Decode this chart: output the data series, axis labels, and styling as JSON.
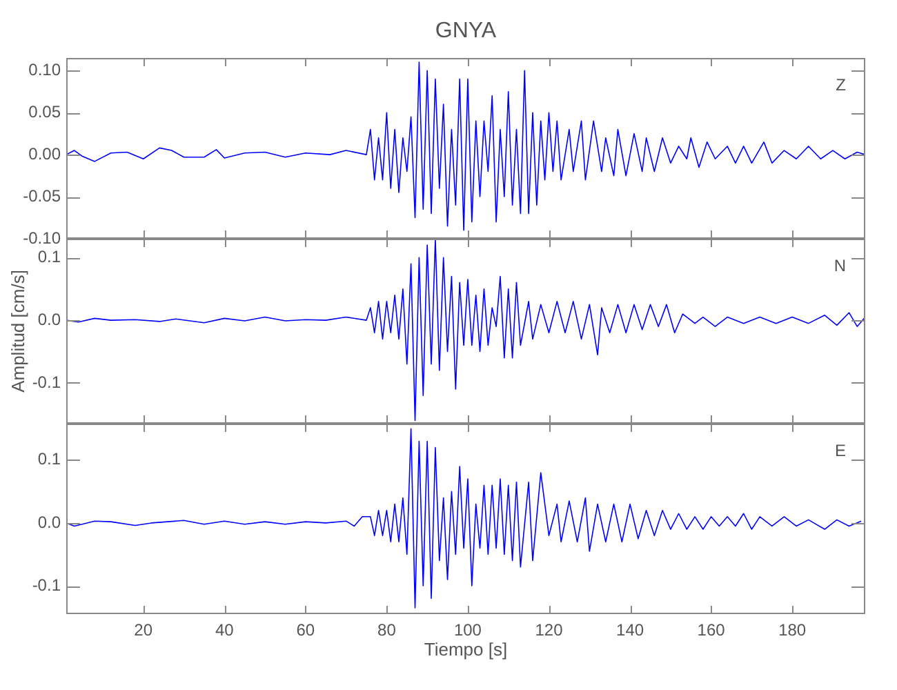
{
  "chart_data": [
    {
      "type": "line",
      "title": "GNYA",
      "annotations": [
        "Z"
      ],
      "tick_labels": "y",
      "xlim": [
        1,
        198
      ],
      "xticks": [
        20,
        40,
        60,
        80,
        100,
        120,
        140,
        160,
        180
      ],
      "ylim": [
        -0.1,
        0.115
      ],
      "yticks": [
        {
          "value": -0.1,
          "label": "-0.10"
        },
        {
          "value": -0.05,
          "label": "-0.05"
        },
        {
          "value": 0,
          "label": "0.00"
        },
        {
          "value": 0.05,
          "label": "0.05"
        },
        {
          "value": 0.1,
          "label": "0.10"
        }
      ],
      "series": [
        {
          "color": "#0000ff",
          "x": [
            1,
            3,
            5,
            8,
            12,
            16,
            20,
            24,
            27,
            30,
            35,
            38,
            40,
            45,
            50,
            55,
            60,
            66,
            70,
            75,
            76,
            77,
            78,
            79,
            80,
            81,
            82,
            83,
            84,
            85,
            86,
            87,
            88,
            89,
            90,
            91,
            92,
            93,
            94,
            95,
            96,
            97,
            98,
            99,
            100,
            101,
            102,
            103,
            104,
            105,
            106,
            107,
            108,
            109,
            110,
            111,
            112,
            113,
            114,
            115,
            116,
            117,
            118,
            119,
            120,
            121,
            122,
            123,
            125,
            126,
            128,
            129,
            131,
            133,
            134,
            136,
            137,
            139,
            141,
            143,
            144,
            146,
            148,
            150,
            152,
            154,
            155,
            157,
            159,
            161,
            164,
            166,
            168,
            170,
            173,
            175,
            178,
            181,
            184,
            187,
            190,
            193,
            196,
            198
          ],
          "values": [
            0,
            0.005,
            -0.002,
            -0.008,
            0.002,
            0.003,
            -0.005,
            0.008,
            0.005,
            -0.003,
            -0.003,
            0.006,
            -0.004,
            0.002,
            0.003,
            -0.003,
            0.002,
            0,
            0.005,
            0,
            0.03,
            -0.03,
            0.02,
            -0.03,
            0.05,
            -0.04,
            0.03,
            -0.045,
            0.02,
            -0.02,
            0.045,
            -0.075,
            0.11,
            -0.065,
            0.1,
            -0.07,
            0.09,
            -0.04,
            0.06,
            -0.085,
            0.03,
            -0.06,
            0.09,
            -0.09,
            0.09,
            -0.08,
            0.04,
            -0.05,
            0.04,
            -0.02,
            0.07,
            -0.08,
            0.03,
            -0.05,
            0.075,
            -0.06,
            0.03,
            -0.07,
            0.1,
            -0.07,
            0.05,
            -0.06,
            0.04,
            -0.03,
            0.05,
            -0.02,
            0.04,
            -0.03,
            0.03,
            -0.02,
            0.04,
            -0.03,
            0.04,
            -0.02,
            0.02,
            -0.025,
            0.03,
            -0.025,
            0.025,
            -0.02,
            0.02,
            -0.02,
            0.02,
            -0.01,
            0.01,
            -0.005,
            0.02,
            -0.015,
            0.015,
            -0.005,
            0.01,
            -0.01,
            0.01,
            -0.01,
            0.015,
            -0.01,
            0.005,
            -0.005,
            0.01,
            -0.005,
            0.005,
            -0.005,
            0.003,
            0
          ]
        }
      ]
    },
    {
      "type": "line",
      "ylabel": "Amplitud [cm/s]",
      "annotations": [
        "N"
      ],
      "tick_labels": "y",
      "xlim": [
        1,
        198
      ],
      "xticks": [
        20,
        40,
        60,
        80,
        100,
        120,
        140,
        160,
        180
      ],
      "ylim": [
        -0.165,
        0.13
      ],
      "yticks": [
        {
          "value": -0.1,
          "label": "-0.1"
        },
        {
          "value": 0,
          "label": "0.0"
        },
        {
          "value": 0.1,
          "label": "0.1"
        }
      ],
      "series": [
        {
          "color": "#0000ff",
          "x": [
            1,
            4,
            8,
            12,
            18,
            24,
            28,
            35,
            40,
            45,
            50,
            55,
            60,
            65,
            70,
            75,
            76,
            77,
            78,
            79,
            80,
            81,
            82,
            83,
            84,
            85,
            86,
            87,
            88,
            89,
            90,
            91,
            92,
            93,
            94,
            95,
            96,
            97,
            98,
            99,
            100,
            101,
            102,
            103,
            104,
            105,
            106,
            107,
            108,
            109,
            110,
            111,
            112,
            113,
            115,
            116,
            118,
            120,
            122,
            124,
            126,
            128,
            130,
            132,
            133,
            135,
            137,
            139,
            141,
            143,
            145,
            147,
            149,
            151,
            153,
            156,
            158,
            161,
            164,
            168,
            172,
            176,
            180,
            184,
            188,
            191,
            194,
            196,
            198
          ],
          "values": [
            0,
            -0.003,
            0.003,
            0,
            0.001,
            -0.002,
            0.002,
            -0.004,
            0.003,
            -0.001,
            0.005,
            -0.001,
            0.001,
            0,
            0.005,
            0,
            0.02,
            -0.02,
            0.03,
            -0.03,
            0.03,
            -0.02,
            0.04,
            -0.03,
            0.05,
            -0.07,
            0.09,
            -0.16,
            0.1,
            -0.12,
            0.12,
            -0.07,
            0.13,
            -0.08,
            0.1,
            -0.05,
            0.07,
            -0.11,
            0.06,
            -0.04,
            0.065,
            -0.04,
            0.04,
            -0.05,
            0.05,
            -0.04,
            0.02,
            -0.01,
            0.07,
            -0.06,
            0.05,
            -0.06,
            0.06,
            -0.04,
            0.03,
            -0.03,
            0.025,
            -0.02,
            0.03,
            -0.02,
            0.03,
            -0.03,
            0.025,
            -0.055,
            0.02,
            -0.02,
            0.025,
            -0.02,
            0.025,
            -0.015,
            0.025,
            -0.01,
            0.025,
            -0.02,
            0.01,
            -0.005,
            0.005,
            -0.01,
            0.005,
            -0.005,
            0.005,
            -0.005,
            0.005,
            -0.005,
            0.008,
            -0.008,
            0.012,
            -0.01,
            0.005
          ]
        }
      ]
    },
    {
      "type": "line",
      "xlabel": "Tiempo [s]",
      "annotations": [
        "E"
      ],
      "xlim": [
        1,
        198
      ],
      "xticks": [
        20,
        40,
        60,
        80,
        100,
        120,
        140,
        160,
        180
      ],
      "ylim": [
        -0.145,
        0.158
      ],
      "yticks": [
        {
          "value": -0.1,
          "label": "-0.1"
        },
        {
          "value": 0,
          "label": "0.0"
        },
        {
          "value": 0.1,
          "label": "0.1"
        }
      ],
      "series": [
        {
          "color": "#0000ff",
          "x": [
            1,
            3,
            8,
            12,
            18,
            22,
            30,
            35,
            40,
            45,
            50,
            55,
            60,
            65,
            70,
            72,
            74,
            76,
            77,
            78,
            79,
            80,
            81,
            82,
            83,
            84,
            85,
            86,
            87,
            88,
            89,
            90,
            91,
            92,
            93,
            94,
            95,
            96,
            97,
            98,
            99,
            100,
            101,
            102,
            103,
            104,
            105,
            106,
            107,
            108,
            109,
            110,
            111,
            112,
            113,
            115,
            116,
            118,
            120,
            122,
            123,
            125,
            127,
            129,
            130,
            132,
            134,
            136,
            138,
            140,
            142,
            144,
            146,
            148,
            150,
            152,
            154,
            156,
            158,
            160,
            162,
            164,
            166,
            168,
            170,
            172,
            175,
            178,
            181,
            184,
            188,
            191,
            194,
            197
          ],
          "values": [
            0,
            -0.005,
            0.003,
            0.002,
            -0.004,
            0,
            0.004,
            -0.002,
            0.003,
            -0.002,
            0.002,
            -0.002,
            0.002,
            0,
            0.003,
            -0.005,
            0.01,
            0.01,
            -0.02,
            0.02,
            -0.02,
            0.02,
            -0.03,
            0.03,
            -0.03,
            0.04,
            -0.05,
            0.15,
            -0.135,
            0.13,
            -0.1,
            0.13,
            -0.12,
            0.12,
            -0.06,
            0.04,
            -0.09,
            0.05,
            -0.05,
            0.09,
            -0.04,
            0.07,
            -0.1,
            0.03,
            -0.04,
            0.06,
            -0.05,
            0.06,
            -0.04,
            0.07,
            -0.05,
            0.06,
            -0.06,
            0.065,
            -0.07,
            0.065,
            -0.06,
            0.08,
            -0.02,
            0.03,
            -0.03,
            0.035,
            -0.03,
            0.04,
            -0.045,
            0.03,
            -0.03,
            0.03,
            -0.03,
            0.03,
            -0.025,
            0.02,
            -0.02,
            0.02,
            -0.01,
            0.015,
            -0.01,
            0.01,
            -0.01,
            0.01,
            -0.005,
            0.01,
            -0.005,
            0.015,
            -0.01,
            0.01,
            -0.005,
            0.01,
            -0.005,
            0.005,
            -0.01,
            0.005,
            -0.005,
            0.003
          ]
        }
      ]
    }
  ]
}
